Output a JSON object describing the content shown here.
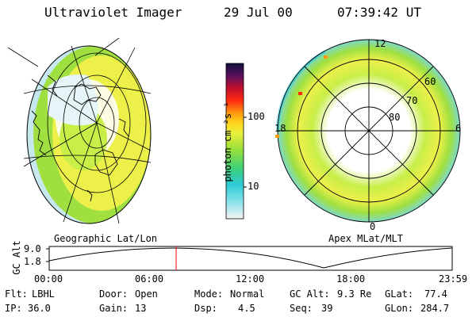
{
  "header": {
    "instrument": "Ultraviolet Imager",
    "date": "29 Jul 00",
    "time": "07:39:42 UT"
  },
  "left_panel": {
    "label": "Geographic Lat/Lon"
  },
  "right_panel": {
    "label": "Apex MLat/MLT",
    "mlt_labels": [
      "12",
      "18",
      "6",
      "0"
    ],
    "lat_labels": [
      "60",
      "70",
      "80"
    ]
  },
  "colorbar": {
    "unit_label": "photon cm⁻²s⁻¹",
    "tick_labels": [
      "100",
      "10"
    ]
  },
  "altitude_plot": {
    "ylabel": "GC Alt",
    "ytick_labels": [
      "9.0",
      "1.8"
    ],
    "xtick_labels": [
      "00:00",
      "06:00",
      "12:00",
      "18:00",
      "23:59"
    ]
  },
  "status": {
    "row1": [
      {
        "label": "Flt:",
        "value": "LBHL"
      },
      {
        "label": "Door:",
        "value": "Open"
      },
      {
        "label": "Mode:",
        "value": "Normal"
      },
      {
        "label": "GC Alt:",
        "value": "9.3 Re"
      },
      {
        "label": "GLat:",
        "value": "77.4"
      }
    ],
    "row2": [
      {
        "label": "IP:",
        "value": "36.0"
      },
      {
        "label": "Gain:",
        "value": "13"
      },
      {
        "label": "Dsp:",
        "value": "4.5"
      },
      {
        "label": "Seq:",
        "value": "39"
      },
      {
        "label": "GLon:",
        "value": "284.7"
      }
    ]
  },
  "colors": {
    "grid": "#000000",
    "marker": "#ff0000"
  }
}
